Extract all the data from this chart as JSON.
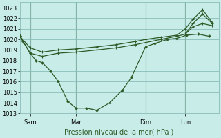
{
  "background_color": "#c8ece8",
  "grid_color": "#8bbdb8",
  "line_color": "#2d5a27",
  "marker_color": "#2d5a27",
  "xlabel": "Pression niveau de la mer( hPa )",
  "ylim": [
    1013,
    1023.5
  ],
  "yticks": [
    1013,
    1014,
    1015,
    1016,
    1017,
    1018,
    1019,
    1020,
    1021,
    1022,
    1023
  ],
  "day_labels": [
    "Sam",
    "Mar",
    "Dim",
    "Lun"
  ],
  "day_positions": [
    16,
    88,
    196,
    258
  ],
  "xlim": [
    0,
    310
  ],
  "vline_positions": [
    16,
    88,
    196,
    258
  ],
  "series1_x": [
    0,
    5,
    16,
    25,
    35,
    48,
    60,
    75,
    88,
    104,
    120,
    140,
    160,
    174,
    196,
    210,
    230,
    245,
    260,
    278,
    295
  ],
  "series1_y": [
    1020.3,
    1019.8,
    1018.7,
    1018.0,
    1017.8,
    1017.0,
    1016.0,
    1014.1,
    1013.5,
    1013.5,
    1013.3,
    1014.0,
    1015.2,
    1016.4,
    1019.3,
    1019.6,
    1020.0,
    1020.1,
    1020.4,
    1020.5,
    1020.3
  ],
  "series2_x": [
    0,
    16,
    35,
    60,
    88,
    120,
    150,
    180,
    196,
    220,
    245,
    258,
    270,
    285,
    300
  ],
  "series2_y": [
    1020.3,
    1018.7,
    1018.4,
    1018.7,
    1018.8,
    1019.0,
    1019.2,
    1019.5,
    1019.7,
    1020.0,
    1020.3,
    1020.5,
    1021.2,
    1021.5,
    1021.3
  ],
  "series3_x": [
    0,
    16,
    35,
    60,
    88,
    120,
    150,
    180,
    196,
    220,
    245,
    258,
    270,
    285,
    300
  ],
  "series3_y": [
    1020.3,
    1019.2,
    1018.8,
    1019.0,
    1019.1,
    1019.3,
    1019.5,
    1019.8,
    1020.0,
    1020.2,
    1020.4,
    1021.0,
    1021.9,
    1022.8,
    1021.6
  ],
  "series4_x": [
    258,
    270,
    285,
    300
  ],
  "series4_y": [
    1020.5,
    1021.5,
    1022.4,
    1021.5
  ]
}
